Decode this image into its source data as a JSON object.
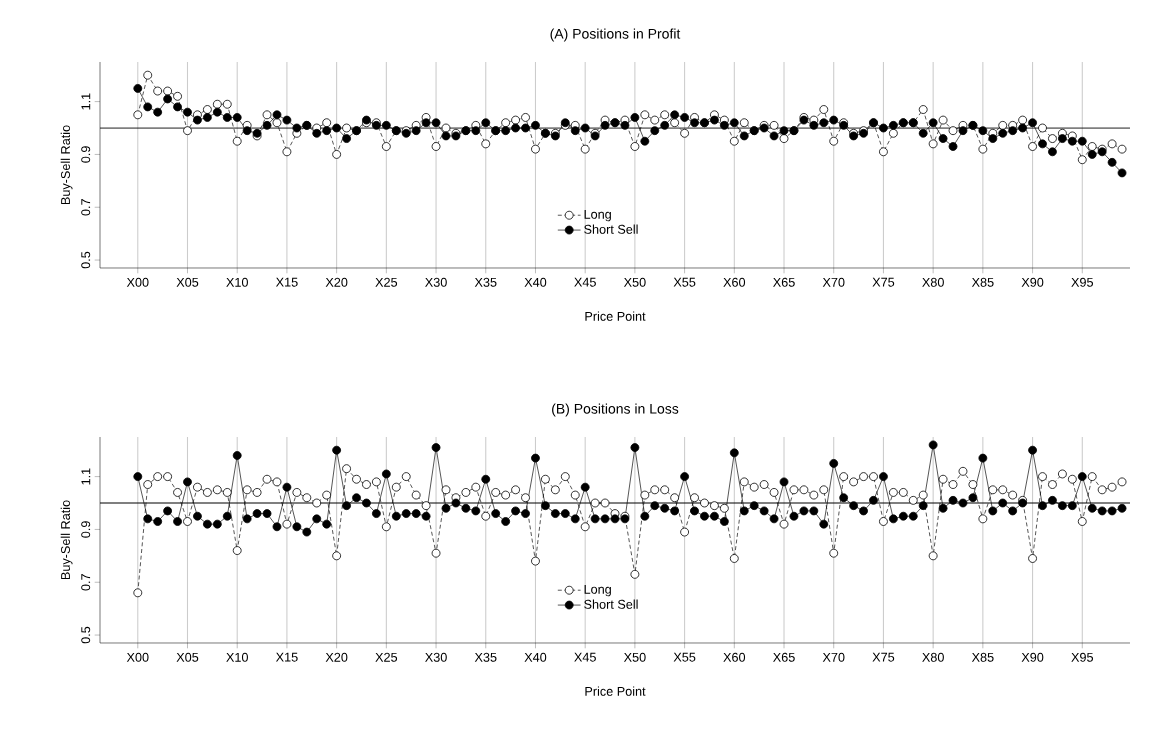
{
  "chart_data": [
    {
      "type": "line",
      "title": "(A) Positions in Profit",
      "xlabel": "Price Point",
      "ylabel": "Buy-Sell Ratio",
      "categories": [
        "X00",
        null,
        null,
        null,
        null,
        "X05",
        null,
        null,
        null,
        null,
        "X10",
        null,
        null,
        null,
        null,
        "X15",
        null,
        null,
        null,
        null,
        "X20",
        null,
        null,
        null,
        null,
        "X25",
        null,
        null,
        null,
        null,
        "X30",
        null,
        null,
        null,
        null,
        "X35",
        null,
        null,
        null,
        null,
        "X40",
        null,
        null,
        null,
        null,
        "X45",
        null,
        null,
        null,
        null,
        "X50",
        null,
        null,
        null,
        null,
        "X55",
        null,
        null,
        null,
        null,
        "X60",
        null,
        null,
        null,
        null,
        "X65",
        null,
        null,
        null,
        null,
        "X70",
        null,
        null,
        null,
        null,
        "X75",
        null,
        null,
        null,
        null,
        "X80",
        null,
        null,
        null,
        null,
        "X85",
        null,
        null,
        null,
        null,
        "X90",
        null,
        null,
        null,
        null,
        "X95",
        null,
        null,
        null,
        null
      ],
      "ylim": [
        0.47,
        1.25
      ],
      "yticks": [
        0.5,
        0.7,
        0.9,
        1.1
      ],
      "grid": "x",
      "legend": "bottom",
      "marker": "circle",
      "ref_lines": [
        {
          "axis": "y",
          "value": 1,
          "color": "#000000"
        }
      ],
      "series": [
        {
          "name": "Long",
          "color": "#000000",
          "line_style": "dashed",
          "values": [
            1.05,
            1.2,
            1.14,
            1.14,
            1.12,
            0.99,
            1.05,
            1.07,
            1.09,
            1.09,
            0.95,
            1.01,
            0.97,
            1.05,
            1.02,
            0.91,
            0.98,
            1.01,
            1.0,
            1.02,
            0.9,
            1.0,
            0.99,
            1.02,
            1.02,
            0.93,
            0.99,
            0.99,
            1.01,
            1.04,
            0.93,
            1.0,
            0.98,
            0.99,
            1.01,
            0.94,
            0.99,
            1.02,
            1.03,
            1.04,
            0.92,
            0.98,
            0.98,
            1.01,
            1.01,
            0.92,
            0.98,
            1.03,
            1.02,
            1.03,
            0.93,
            1.05,
            1.03,
            1.05,
            1.02,
            0.98,
            1.04,
            1.02,
            1.05,
            1.03,
            0.95,
            1.02,
            0.99,
            1.01,
            1.01,
            0.96,
            0.99,
            1.04,
            1.03,
            1.07,
            0.95,
            1.02,
            0.98,
            0.99,
            1.02,
            0.91,
            0.98,
            1.02,
            1.02,
            1.07,
            0.94,
            1.03,
            0.99,
            1.01,
            1.01,
            0.92,
            0.98,
            1.01,
            1.01,
            1.03,
            0.93,
            1.0,
            0.96,
            0.98,
            0.97,
            0.88,
            0.93,
            0.92,
            0.94,
            0.92
          ]
        },
        {
          "name": "Short Sell",
          "color": "#000000",
          "line_style": "solid",
          "values": [
            1.15,
            1.08,
            1.06,
            1.11,
            1.08,
            1.06,
            1.03,
            1.04,
            1.06,
            1.04,
            1.04,
            0.99,
            0.98,
            1.01,
            1.05,
            1.03,
            1.0,
            1.01,
            0.98,
            0.99,
            1.0,
            0.96,
            0.99,
            1.03,
            1.01,
            1.01,
            0.99,
            0.98,
            0.99,
            1.02,
            1.02,
            0.97,
            0.97,
            0.99,
            0.99,
            1.02,
            0.99,
            0.99,
            1.0,
            1.0,
            1.01,
            0.98,
            0.97,
            1.02,
            0.99,
            1.0,
            0.97,
            1.01,
            1.02,
            1.01,
            1.04,
            0.95,
            0.99,
            1.01,
            1.05,
            1.04,
            1.02,
            1.02,
            1.03,
            1.01,
            1.02,
            0.97,
            0.99,
            1.0,
            0.97,
            0.99,
            0.99,
            1.03,
            1.01,
            1.02,
            1.03,
            1.01,
            0.97,
            0.98,
            1.02,
            1.0,
            1.01,
            1.02,
            1.02,
            0.98,
            1.02,
            0.96,
            0.93,
            0.99,
            1.01,
            0.99,
            0.96,
            0.98,
            0.99,
            1.0,
            1.02,
            0.94,
            0.91,
            0.96,
            0.95,
            0.95,
            0.9,
            0.91,
            0.87,
            0.83
          ]
        }
      ]
    },
    {
      "type": "line",
      "title": "(B) Positions in Loss",
      "xlabel": "Price Point",
      "ylabel": "Buy-Sell Ratio",
      "categories": [
        "X00",
        null,
        null,
        null,
        null,
        "X05",
        null,
        null,
        null,
        null,
        "X10",
        null,
        null,
        null,
        null,
        "X15",
        null,
        null,
        null,
        null,
        "X20",
        null,
        null,
        null,
        null,
        "X25",
        null,
        null,
        null,
        null,
        "X30",
        null,
        null,
        null,
        null,
        "X35",
        null,
        null,
        null,
        null,
        "X40",
        null,
        null,
        null,
        null,
        "X45",
        null,
        null,
        null,
        null,
        "X50",
        null,
        null,
        null,
        null,
        "X55",
        null,
        null,
        null,
        null,
        "X60",
        null,
        null,
        null,
        null,
        "X65",
        null,
        null,
        null,
        null,
        "X70",
        null,
        null,
        null,
        null,
        "X75",
        null,
        null,
        null,
        null,
        "X80",
        null,
        null,
        null,
        null,
        "X85",
        null,
        null,
        null,
        null,
        "X90",
        null,
        null,
        null,
        null,
        "X95",
        null,
        null,
        null,
        null
      ],
      "ylim": [
        0.47,
        1.25
      ],
      "yticks": [
        0.5,
        0.7,
        0.9,
        1.1
      ],
      "grid": "x",
      "legend": "bottom",
      "marker": "circle",
      "ref_lines": [
        {
          "axis": "y",
          "value": 1,
          "color": "#000000"
        }
      ],
      "series": [
        {
          "name": "Long",
          "color": "#000000",
          "line_style": "dashed",
          "values": [
            0.66,
            1.07,
            1.1,
            1.1,
            1.04,
            0.93,
            1.06,
            1.04,
            1.05,
            1.04,
            0.82,
            1.05,
            1.04,
            1.09,
            1.08,
            0.92,
            1.04,
            1.02,
            1.0,
            1.03,
            0.8,
            1.13,
            1.09,
            1.07,
            1.08,
            0.91,
            1.06,
            1.1,
            1.03,
            0.99,
            0.81,
            1.05,
            1.02,
            1.04,
            1.06,
            0.95,
            1.04,
            1.03,
            1.05,
            1.02,
            0.78,
            1.09,
            1.05,
            1.1,
            1.03,
            0.91,
            1.0,
            1.0,
            0.96,
            0.95,
            0.73,
            1.03,
            1.05,
            1.05,
            1.02,
            0.89,
            1.02,
            1.0,
            0.99,
            0.98,
            0.79,
            1.08,
            1.06,
            1.07,
            1.04,
            0.92,
            1.05,
            1.05,
            1.03,
            1.05,
            0.81,
            1.1,
            1.08,
            1.1,
            1.1,
            0.93,
            1.04,
            1.04,
            1.01,
            1.03,
            0.8,
            1.09,
            1.07,
            1.12,
            1.07,
            0.94,
            1.05,
            1.05,
            1.03,
            1.01,
            0.79,
            1.1,
            1.07,
            1.11,
            1.09,
            0.93,
            1.1,
            1.05,
            1.06,
            1.08
          ]
        },
        {
          "name": "Short Sell",
          "color": "#000000",
          "line_style": "solid",
          "values": [
            1.1,
            0.94,
            0.93,
            0.97,
            0.93,
            1.08,
            0.95,
            0.92,
            0.92,
            0.95,
            1.18,
            0.94,
            0.96,
            0.96,
            0.91,
            1.06,
            0.91,
            0.89,
            0.94,
            0.92,
            1.2,
            0.99,
            1.02,
            1.0,
            0.96,
            1.11,
            0.95,
            0.96,
            0.96,
            0.95,
            1.21,
            0.98,
            1.0,
            0.98,
            0.97,
            1.09,
            0.96,
            0.93,
            0.97,
            0.96,
            1.17,
            0.99,
            0.96,
            0.96,
            0.94,
            1.06,
            0.94,
            0.94,
            0.94,
            0.94,
            1.21,
            0.95,
            0.99,
            0.98,
            0.97,
            1.1,
            0.97,
            0.95,
            0.95,
            0.93,
            1.19,
            0.97,
            0.99,
            0.97,
            0.94,
            1.08,
            0.95,
            0.97,
            0.97,
            0.92,
            1.15,
            1.02,
            0.99,
            0.97,
            1.01,
            1.1,
            0.94,
            0.95,
            0.95,
            0.99,
            1.22,
            0.98,
            1.01,
            1.0,
            1.02,
            1.17,
            0.97,
            1.0,
            0.97,
            1.0,
            1.2,
            0.99,
            1.01,
            0.99,
            0.99,
            1.1,
            0.98,
            0.97,
            0.97,
            0.98
          ]
        }
      ]
    }
  ]
}
